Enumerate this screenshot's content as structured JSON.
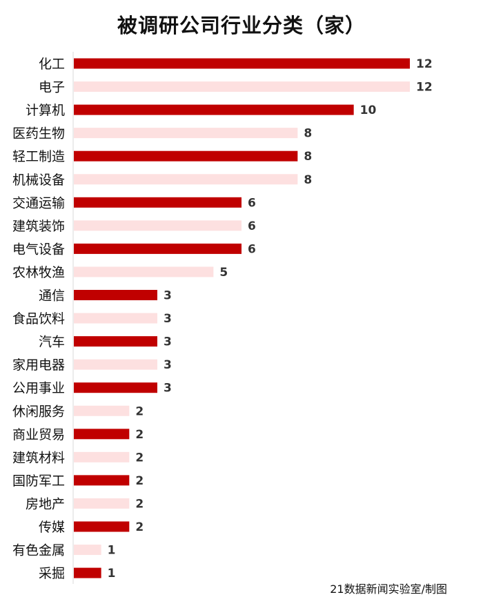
{
  "chart_data": {
    "type": "bar",
    "orientation": "horizontal",
    "title": "被调研公司行业分类（家）",
    "categories": [
      "化工",
      "电子",
      "计算机",
      "医药生物",
      "轻工制造",
      "机械设备",
      "交通运输",
      "建筑装饰",
      "电气设备",
      "农林牧渔",
      "通信",
      "食品饮料",
      "汽车",
      "家用电器",
      "公用事业",
      "休闲服务",
      "商业贸易",
      "建筑材料",
      "国防军工",
      "房地产",
      "传媒",
      "有色金属",
      "采掘"
    ],
    "values": [
      12,
      12,
      10,
      8,
      8,
      8,
      6,
      6,
      6,
      5,
      3,
      3,
      3,
      3,
      3,
      2,
      2,
      2,
      2,
      2,
      2,
      1,
      1
    ],
    "xlim": [
      0,
      12
    ],
    "grid": false,
    "legend": "none",
    "data_labels": true,
    "colors": {
      "primary": "#c00000",
      "alternate": "#fde0e0"
    }
  },
  "credit": "21数据新闻实验室/制图"
}
